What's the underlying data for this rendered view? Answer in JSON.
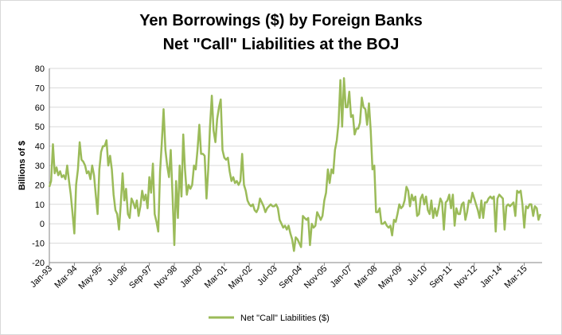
{
  "chart_data": {
    "type": "line",
    "title_lines": [
      "Yen Borrowings ($) by Foreign Banks",
      "Net \"Call\" Liabilities at the BOJ"
    ],
    "ylabel": "Billions of $",
    "xlabel": "",
    "ylim": [
      -20,
      80
    ],
    "yticks": [
      -20,
      -10,
      0,
      10,
      20,
      30,
      40,
      50,
      60,
      70,
      80
    ],
    "x_start": "1993-01",
    "x_end": "2015-12",
    "xticks": [
      {
        "label": "Jan-93",
        "date": "1993-01"
      },
      {
        "label": "Mar-94",
        "date": "1994-03"
      },
      {
        "label": "May-95",
        "date": "1995-05"
      },
      {
        "label": "Jul-96",
        "date": "1996-07"
      },
      {
        "label": "Sep-97",
        "date": "1997-09"
      },
      {
        "label": "Nov-98",
        "date": "1998-11"
      },
      {
        "label": "Jan-00",
        "date": "2000-01"
      },
      {
        "label": "Mar-01",
        "date": "2001-03"
      },
      {
        "label": "May-02",
        "date": "2002-05"
      },
      {
        "label": "Jul-03",
        "date": "2003-07"
      },
      {
        "label": "Sep-04",
        "date": "2004-09"
      },
      {
        "label": "Nov-05",
        "date": "2005-11"
      },
      {
        "label": "Jan-07",
        "date": "2007-01"
      },
      {
        "label": "Mar-08",
        "date": "2008-03"
      },
      {
        "label": "May-09",
        "date": "2009-05"
      },
      {
        "label": "Jul-10",
        "date": "2010-07"
      },
      {
        "label": "Sep-11",
        "date": "2011-09"
      },
      {
        "label": "Nov-12",
        "date": "2012-11"
      },
      {
        "label": "Jan-14",
        "date": "2014-01"
      },
      {
        "label": "Mar-15",
        "date": "2015-03"
      }
    ],
    "grid": true,
    "legend_position": "bottom",
    "series": [
      {
        "name": "Net \"Call\" Liabilities ($)",
        "color": "#9bbb59",
        "points": [
          [
            "1993-01",
            19
          ],
          [
            "1993-02",
            22
          ],
          [
            "1993-03",
            41
          ],
          [
            "1993-04",
            26
          ],
          [
            "1993-05",
            29
          ],
          [
            "1993-06",
            25
          ],
          [
            "1993-07",
            27
          ],
          [
            "1993-08",
            24
          ],
          [
            "1993-09",
            25
          ],
          [
            "1993-10",
            23
          ],
          [
            "1993-11",
            30
          ],
          [
            "1993-12",
            22
          ],
          [
            "1994-01",
            15
          ],
          [
            "1994-02",
            5
          ],
          [
            "1994-03",
            -5
          ],
          [
            "1994-04",
            20
          ],
          [
            "1994-05",
            28
          ],
          [
            "1994-06",
            42
          ],
          [
            "1994-07",
            33
          ],
          [
            "1994-08",
            32
          ],
          [
            "1994-09",
            30
          ],
          [
            "1994-10",
            26
          ],
          [
            "1994-11",
            27
          ],
          [
            "1994-12",
            23
          ],
          [
            "1995-01",
            30
          ],
          [
            "1995-02",
            25
          ],
          [
            "1995-03",
            15
          ],
          [
            "1995-04",
            5
          ],
          [
            "1995-05",
            28
          ],
          [
            "1995-06",
            37
          ],
          [
            "1995-07",
            40
          ],
          [
            "1995-08",
            40
          ],
          [
            "1995-09",
            43
          ],
          [
            "1995-10",
            30
          ],
          [
            "1995-11",
            35
          ],
          [
            "1995-12",
            28
          ],
          [
            "1996-01",
            15
          ],
          [
            "1996-02",
            7
          ],
          [
            "1996-03",
            5
          ],
          [
            "1996-04",
            -3
          ],
          [
            "1996-05",
            10
          ],
          [
            "1996-06",
            26
          ],
          [
            "1996-07",
            12
          ],
          [
            "1996-08",
            18
          ],
          [
            "1996-09",
            5
          ],
          [
            "1996-10",
            3
          ],
          [
            "1996-11",
            13
          ],
          [
            "1996-12",
            11
          ],
          [
            "1997-01",
            8
          ],
          [
            "1997-02",
            12
          ],
          [
            "1997-03",
            4
          ],
          [
            "1997-04",
            9
          ],
          [
            "1997-05",
            17
          ],
          [
            "1997-06",
            12
          ],
          [
            "1997-07",
            15
          ],
          [
            "1997-08",
            8
          ],
          [
            "1997-09",
            24
          ],
          [
            "1997-10",
            16
          ],
          [
            "1997-11",
            31
          ],
          [
            "1997-12",
            5
          ],
          [
            "1998-01",
            1
          ],
          [
            "1998-02",
            -4
          ],
          [
            "1998-03",
            27
          ],
          [
            "1998-04",
            42
          ],
          [
            "1998-05",
            59
          ],
          [
            "1998-06",
            38
          ],
          [
            "1998-07",
            30
          ],
          [
            "1998-08",
            24
          ],
          [
            "1998-09",
            38
          ],
          [
            "1998-10",
            14
          ],
          [
            "1998-11",
            -11
          ],
          [
            "1998-12",
            22
          ],
          [
            "1999-01",
            3
          ],
          [
            "1999-02",
            30
          ],
          [
            "1999-03",
            14
          ],
          [
            "1999-04",
            46
          ],
          [
            "1999-05",
            28
          ],
          [
            "1999-06",
            15
          ],
          [
            "1999-07",
            20
          ],
          [
            "1999-08",
            18
          ],
          [
            "1999-09",
            20
          ],
          [
            "1999-10",
            30
          ],
          [
            "1999-11",
            28
          ],
          [
            "1999-12",
            38
          ],
          [
            "2000-01",
            51
          ],
          [
            "2000-02",
            36
          ],
          [
            "2000-03",
            36
          ],
          [
            "2000-04",
            35
          ],
          [
            "2000-05",
            13
          ],
          [
            "2000-06",
            28
          ],
          [
            "2000-07",
            50
          ],
          [
            "2000-08",
            66
          ],
          [
            "2000-09",
            48
          ],
          [
            "2000-10",
            42
          ],
          [
            "2000-11",
            54
          ],
          [
            "2000-12",
            60
          ],
          [
            "2001-01",
            64
          ],
          [
            "2001-02",
            38
          ],
          [
            "2001-03",
            34
          ],
          [
            "2001-04",
            33
          ],
          [
            "2001-05",
            34
          ],
          [
            "2001-06",
            27
          ],
          [
            "2001-07",
            22
          ],
          [
            "2001-08",
            24
          ],
          [
            "2001-09",
            21
          ],
          [
            "2001-10",
            22
          ],
          [
            "2001-11",
            20
          ],
          [
            "2001-12",
            22
          ],
          [
            "2002-01",
            36
          ],
          [
            "2002-02",
            20
          ],
          [
            "2002-03",
            17
          ],
          [
            "2002-04",
            12
          ],
          [
            "2002-05",
            10
          ],
          [
            "2002-06",
            9
          ],
          [
            "2002-07",
            10
          ],
          [
            "2002-08",
            7
          ],
          [
            "2002-09",
            6
          ],
          [
            "2002-10",
            8
          ],
          [
            "2002-11",
            13
          ],
          [
            "2002-12",
            11
          ],
          [
            "2003-01",
            9
          ],
          [
            "2003-02",
            6
          ],
          [
            "2003-03",
            8
          ],
          [
            "2003-04",
            9
          ],
          [
            "2003-05",
            10
          ],
          [
            "2003-06",
            9
          ],
          [
            "2003-07",
            9
          ],
          [
            "2003-08",
            10
          ],
          [
            "2003-09",
            8
          ],
          [
            "2003-10",
            2
          ],
          [
            "2003-11",
            0
          ],
          [
            "2003-12",
            -2
          ],
          [
            "2004-01",
            -1
          ],
          [
            "2004-02",
            -3
          ],
          [
            "2004-03",
            -1
          ],
          [
            "2004-04",
            -5
          ],
          [
            "2004-05",
            -8
          ],
          [
            "2004-06",
            -14
          ],
          [
            "2004-07",
            -7
          ],
          [
            "2004-08",
            -8
          ],
          [
            "2004-09",
            -10
          ],
          [
            "2004-10",
            -12
          ],
          [
            "2004-11",
            4
          ],
          [
            "2004-12",
            3
          ],
          [
            "2005-01",
            2
          ],
          [
            "2005-02",
            3
          ],
          [
            "2005-03",
            -11
          ],
          [
            "2005-04",
            0
          ],
          [
            "2005-05",
            -2
          ],
          [
            "2005-06",
            -1
          ],
          [
            "2005-07",
            6
          ],
          [
            "2005-08",
            4
          ],
          [
            "2005-09",
            2
          ],
          [
            "2005-10",
            4
          ],
          [
            "2005-11",
            12
          ],
          [
            "2005-12",
            16
          ],
          [
            "2006-01",
            28
          ],
          [
            "2006-02",
            21
          ],
          [
            "2006-03",
            28
          ],
          [
            "2006-04",
            26
          ],
          [
            "2006-05",
            38
          ],
          [
            "2006-06",
            43
          ],
          [
            "2006-07",
            52
          ],
          [
            "2006-08",
            74
          ],
          [
            "2006-09",
            50
          ],
          [
            "2006-10",
            75
          ],
          [
            "2006-11",
            60
          ],
          [
            "2006-12",
            60
          ],
          [
            "2007-01",
            68
          ],
          [
            "2007-02",
            55
          ],
          [
            "2007-03",
            56
          ],
          [
            "2007-04",
            46
          ],
          [
            "2007-05",
            49
          ],
          [
            "2007-06",
            49
          ],
          [
            "2007-07",
            52
          ],
          [
            "2007-08",
            65
          ],
          [
            "2007-09",
            60
          ],
          [
            "2007-10",
            59
          ],
          [
            "2007-11",
            51
          ],
          [
            "2007-12",
            62
          ],
          [
            "2008-01",
            48
          ],
          [
            "2008-02",
            28
          ],
          [
            "2008-03",
            30
          ],
          [
            "2008-04",
            6
          ],
          [
            "2008-05",
            6
          ],
          [
            "2008-06",
            8
          ],
          [
            "2008-07",
            0
          ],
          [
            "2008-08",
            0
          ],
          [
            "2008-09",
            1
          ],
          [
            "2008-10",
            -1
          ],
          [
            "2008-11",
            -2
          ],
          [
            "2008-12",
            -1
          ],
          [
            "2009-01",
            -6
          ],
          [
            "2009-02",
            2
          ],
          [
            "2009-03",
            1
          ],
          [
            "2009-04",
            5
          ],
          [
            "2009-05",
            10
          ],
          [
            "2009-06",
            8
          ],
          [
            "2009-07",
            9
          ],
          [
            "2009-08",
            12
          ],
          [
            "2009-09",
            19
          ],
          [
            "2009-10",
            17
          ],
          [
            "2009-11",
            9
          ],
          [
            "2009-12",
            15
          ],
          [
            "2010-01",
            12
          ],
          [
            "2010-02",
            14
          ],
          [
            "2010-03",
            4
          ],
          [
            "2010-04",
            5
          ],
          [
            "2010-05",
            13
          ],
          [
            "2010-06",
            15
          ],
          [
            "2010-07",
            10
          ],
          [
            "2010-08",
            14
          ],
          [
            "2010-09",
            7
          ],
          [
            "2010-10",
            5
          ],
          [
            "2010-11",
            12
          ],
          [
            "2010-12",
            3
          ],
          [
            "2011-01",
            8
          ],
          [
            "2011-02",
            4
          ],
          [
            "2011-03",
            8
          ],
          [
            "2011-04",
            13
          ],
          [
            "2011-05",
            11
          ],
          [
            "2011-06",
            -3
          ],
          [
            "2011-07",
            11
          ],
          [
            "2011-08",
            12
          ],
          [
            "2011-09",
            15
          ],
          [
            "2011-10",
            8
          ],
          [
            "2011-11",
            15
          ],
          [
            "2011-12",
            -1
          ],
          [
            "2012-01",
            8
          ],
          [
            "2012-02",
            5
          ],
          [
            "2012-03",
            5
          ],
          [
            "2012-04",
            10
          ],
          [
            "2012-05",
            11
          ],
          [
            "2012-06",
            2
          ],
          [
            "2012-07",
            6
          ],
          [
            "2012-08",
            12
          ],
          [
            "2012-09",
            11
          ],
          [
            "2012-10",
            16
          ],
          [
            "2012-11",
            13
          ],
          [
            "2012-12",
            10
          ],
          [
            "2013-01",
            7
          ],
          [
            "2013-02",
            3
          ],
          [
            "2013-03",
            12
          ],
          [
            "2013-04",
            3
          ],
          [
            "2013-05",
            11
          ],
          [
            "2013-06",
            11
          ],
          [
            "2013-07",
            13
          ],
          [
            "2013-08",
            14
          ],
          [
            "2013-09",
            13
          ],
          [
            "2013-10",
            14
          ],
          [
            "2013-11",
            -4
          ],
          [
            "2013-12",
            13
          ],
          [
            "2014-01",
            15
          ],
          [
            "2014-02",
            14
          ],
          [
            "2014-03",
            13
          ],
          [
            "2014-04",
            -3
          ],
          [
            "2014-05",
            9
          ],
          [
            "2014-06",
            10
          ],
          [
            "2014-07",
            9
          ],
          [
            "2014-08",
            10
          ],
          [
            "2014-09",
            11
          ],
          [
            "2014-10",
            4
          ],
          [
            "2014-11",
            17
          ],
          [
            "2014-12",
            16
          ],
          [
            "2015-01",
            17
          ],
          [
            "2015-02",
            10
          ],
          [
            "2015-03",
            -2
          ],
          [
            "2015-04",
            9
          ],
          [
            "2015-05",
            8
          ],
          [
            "2015-06",
            10
          ],
          [
            "2015-07",
            10
          ],
          [
            "2015-08",
            4
          ],
          [
            "2015-09",
            9
          ],
          [
            "2015-10",
            8
          ],
          [
            "2015-11",
            2
          ],
          [
            "2015-12",
            5
          ]
        ]
      }
    ]
  }
}
